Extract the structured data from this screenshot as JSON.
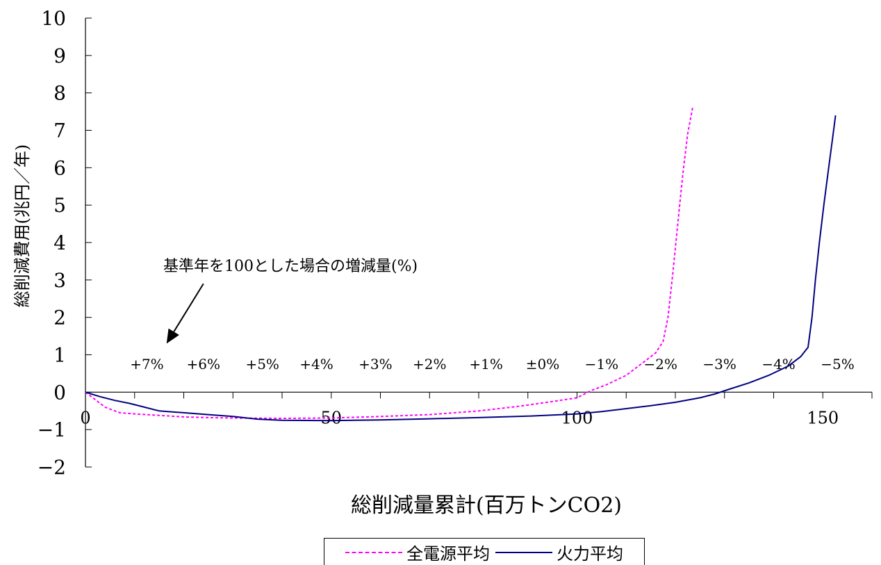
{
  "chart_data": {
    "type": "line",
    "title": "",
    "xlabel": "総削減量累計(百万トンCO2)",
    "ylabel": "総削減費用(兆円／年)",
    "xlim": [
      0,
      160
    ],
    "ylim": [
      -2,
      10
    ],
    "x_ticks": [
      {
        "value": 0,
        "label": "0"
      },
      {
        "value": 50,
        "label": "50"
      },
      {
        "value": 100,
        "label": "100"
      },
      {
        "value": 150,
        "label": "150"
      }
    ],
    "y_ticks": [
      {
        "value": 10,
        "label": "10",
        "color": "#000000"
      },
      {
        "value": 9,
        "label": "9",
        "color": "#000000"
      },
      {
        "value": 8,
        "label": "8",
        "color": "#000000"
      },
      {
        "value": 7,
        "label": "7",
        "color": "#000000"
      },
      {
        "value": 6,
        "label": "6",
        "color": "#000000"
      },
      {
        "value": 5,
        "label": "5",
        "color": "#000000"
      },
      {
        "value": 4,
        "label": "4",
        "color": "#000000"
      },
      {
        "value": 3,
        "label": "3",
        "color": "#000000"
      },
      {
        "value": 2,
        "label": "2",
        "color": "#000000"
      },
      {
        "value": 1,
        "label": "1",
        "color": "#000000"
      },
      {
        "value": 0,
        "label": "0",
        "color": "#000000"
      },
      {
        "value": -1,
        "label": "−1",
        "color": "#ff0000"
      },
      {
        "value": -2,
        "label": "−2",
        "color": "#ff0000"
      }
    ],
    "annotation": {
      "text": "基準年を100とした場合の増減量(%)",
      "arrow_from": [
        24.0,
        2.9
      ],
      "arrow_to": [
        16.5,
        1.3
      ]
    },
    "percent_labels": [
      {
        "x": 12.5,
        "label": "+7%"
      },
      {
        "x": 24.0,
        "label": "+6%"
      },
      {
        "x": 36.0,
        "label": "+5%"
      },
      {
        "x": 47.0,
        "label": "+4%"
      },
      {
        "x": 59.0,
        "label": "+3%"
      },
      {
        "x": 70.0,
        "label": "+2%"
      },
      {
        "x": 81.5,
        "label": "+1%"
      },
      {
        "x": 93.0,
        "label": "±0%"
      },
      {
        "x": 105.0,
        "label": "−1%"
      },
      {
        "x": 117.0,
        "label": "−2%"
      },
      {
        "x": 129.0,
        "label": "−3%"
      },
      {
        "x": 141.0,
        "label": "−4%"
      },
      {
        "x": 153.0,
        "label": "−5%"
      }
    ],
    "percent_label_y": 0.75,
    "series": [
      {
        "name": "全電源平均",
        "color": "#ff00ff",
        "dash": true,
        "points": [
          [
            0,
            0
          ],
          [
            2,
            -0.2
          ],
          [
            4,
            -0.4
          ],
          [
            7,
            -0.55
          ],
          [
            10,
            -0.58
          ],
          [
            15,
            -0.62
          ],
          [
            20,
            -0.66
          ],
          [
            25,
            -0.68
          ],
          [
            30,
            -0.69
          ],
          [
            40,
            -0.7
          ],
          [
            50,
            -0.69
          ],
          [
            60,
            -0.65
          ],
          [
            70,
            -0.6
          ],
          [
            80,
            -0.5
          ],
          [
            88,
            -0.38
          ],
          [
            95,
            -0.25
          ],
          [
            100,
            -0.15
          ],
          [
            103,
            0.05
          ],
          [
            106,
            0.2
          ],
          [
            110,
            0.45
          ],
          [
            113,
            0.75
          ],
          [
            116,
            1.05
          ],
          [
            117.5,
            1.35
          ],
          [
            118.5,
            2.0
          ],
          [
            119.5,
            3.2
          ],
          [
            120.5,
            4.5
          ],
          [
            121.5,
            5.8
          ],
          [
            122.5,
            6.9
          ],
          [
            123.5,
            7.6
          ]
        ]
      },
      {
        "name": "火力平均",
        "color": "#000080",
        "dash": false,
        "points": [
          [
            0,
            0
          ],
          [
            3,
            -0.12
          ],
          [
            6,
            -0.22
          ],
          [
            9,
            -0.3
          ],
          [
            12,
            -0.4
          ],
          [
            15,
            -0.5
          ],
          [
            20,
            -0.55
          ],
          [
            25,
            -0.6
          ],
          [
            30,
            -0.65
          ],
          [
            35,
            -0.72
          ],
          [
            40,
            -0.75
          ],
          [
            50,
            -0.76
          ],
          [
            60,
            -0.74
          ],
          [
            70,
            -0.71
          ],
          [
            80,
            -0.68
          ],
          [
            90,
            -0.64
          ],
          [
            100,
            -0.58
          ],
          [
            105,
            -0.52
          ],
          [
            110,
            -0.44
          ],
          [
            115,
            -0.36
          ],
          [
            120,
            -0.27
          ],
          [
            125,
            -0.15
          ],
          [
            128,
            -0.05
          ],
          [
            131,
            0.08
          ],
          [
            135,
            0.25
          ],
          [
            139,
            0.45
          ],
          [
            143,
            0.7
          ],
          [
            145.5,
            0.95
          ],
          [
            147,
            1.2
          ],
          [
            147.8,
            2.0
          ],
          [
            148.5,
            3.0
          ],
          [
            149.3,
            4.0
          ],
          [
            150.2,
            5.0
          ],
          [
            151.2,
            6.0
          ],
          [
            152.0,
            6.8
          ],
          [
            152.6,
            7.4
          ]
        ]
      }
    ],
    "legend": [
      {
        "label": "全電源平均",
        "color": "#ff00ff",
        "dash": true
      },
      {
        "label": "火力平均",
        "color": "#000080",
        "dash": false
      }
    ],
    "legend_position": "bottom",
    "grid": false
  }
}
